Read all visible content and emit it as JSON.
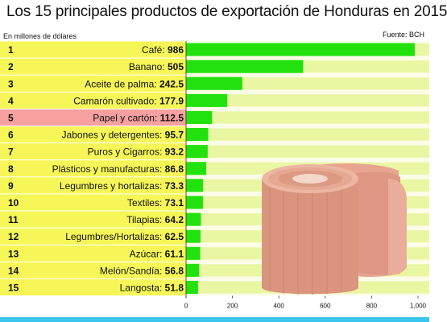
{
  "header": {
    "title": "Los 15 principales productos de exportación de Honduras en 2015",
    "subtitle": "En millones de dólares",
    "source": "Fuente: BCH"
  },
  "colors": {
    "bar": "#22e10f",
    "row_yellow": "#f6f658",
    "row_highlight": "#f6a0a0",
    "stripe": "#e9f6a2",
    "accent_rule": "#39c6ee"
  },
  "highlight_category": "Papel y cartón",
  "chart_data": {
    "type": "bar",
    "orientation": "horizontal",
    "ranks": [
      "1",
      "2",
      "3",
      "4",
      "5",
      "6",
      "7",
      "8",
      "9",
      "10",
      "11",
      "12",
      "13",
      "14",
      "15"
    ],
    "categories": [
      "Café",
      "Banano",
      "Aceite de palma",
      "Camarón cultivado",
      "Papel y cartón",
      "Jabones y detergentes",
      "Puros y Cigarros",
      "Plásticos y manufacturas",
      "Legumbres y hortalizas",
      "Textiles",
      "Tilapias",
      "Legumbres/Hortalizas",
      "Azúcar",
      "Melón/Sandía",
      "Langosta"
    ],
    "values": [
      986,
      505,
      242.5,
      177.9,
      112.5,
      95.7,
      93.2,
      86.8,
      73.3,
      73.1,
      64.2,
      62.5,
      61.1,
      56.8,
      51.8
    ],
    "value_labels": [
      "986",
      "505",
      "242.5",
      "177.9",
      "112.5",
      "95.7",
      "93.2",
      "86.8",
      "73.3",
      "73.1",
      "64.2",
      "62.5",
      "61.1",
      "56.8",
      "51.8"
    ],
    "xlim": [
      0,
      1000
    ],
    "ticks": [
      0,
      200,
      400,
      600,
      800,
      1000
    ],
    "tick_labels": [
      "0",
      "200",
      "400",
      "600",
      "800",
      "1,000"
    ],
    "grid": false,
    "legend": "none"
  }
}
